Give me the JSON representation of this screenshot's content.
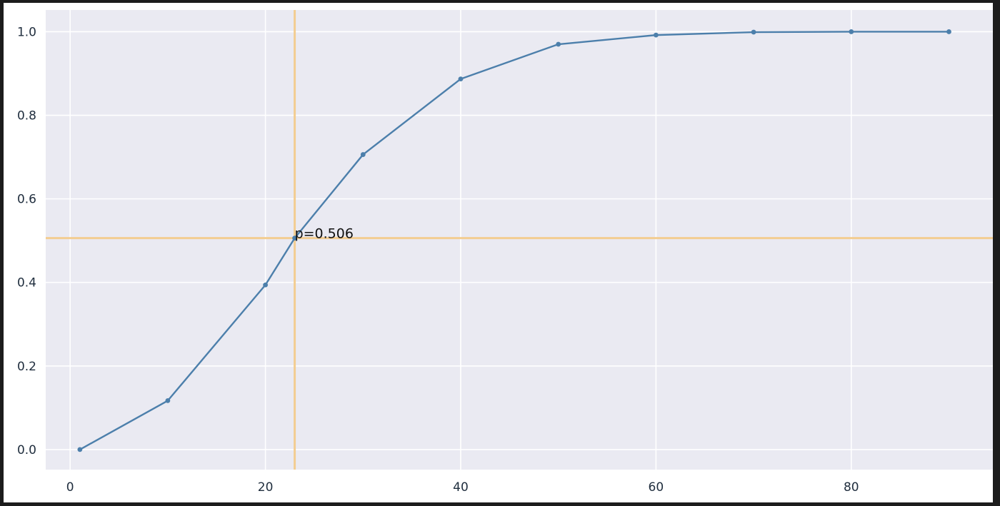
{
  "chart_data": {
    "type": "line",
    "x": [
      1,
      10,
      20,
      23,
      30,
      40,
      50,
      60,
      70,
      80,
      90
    ],
    "series": [
      {
        "values": [
          0.0,
          0.117,
          0.394,
          0.506,
          0.706,
          0.887,
          0.97,
          0.992,
          0.999,
          1.0,
          1.0
        ]
      }
    ],
    "xlim": [
      -2.5,
      94.5
    ],
    "ylim": [
      -0.048,
      1.052
    ],
    "xticks": [
      0,
      20,
      40,
      60,
      80
    ],
    "yticks": [
      0.0,
      0.2,
      0.4,
      0.6,
      0.8,
      1.0
    ],
    "xtick_labels": [
      "0",
      "20",
      "40",
      "60",
      "80"
    ],
    "ytick_labels": [
      "0.0",
      "0.2",
      "0.4",
      "0.6",
      "0.8",
      "1.0"
    ],
    "reference_lines": {
      "x": 23,
      "y": 0.506
    },
    "annotation": {
      "text": "p=0.506",
      "x": 23,
      "y": 0.506
    },
    "grid": true,
    "title": "",
    "xlabel": "",
    "ylabel": "",
    "colors": {
      "line": "#4c7fab",
      "reference": "#f3cd91",
      "plot_background": "#eaeaf2",
      "grid": "#ffffff"
    }
  }
}
